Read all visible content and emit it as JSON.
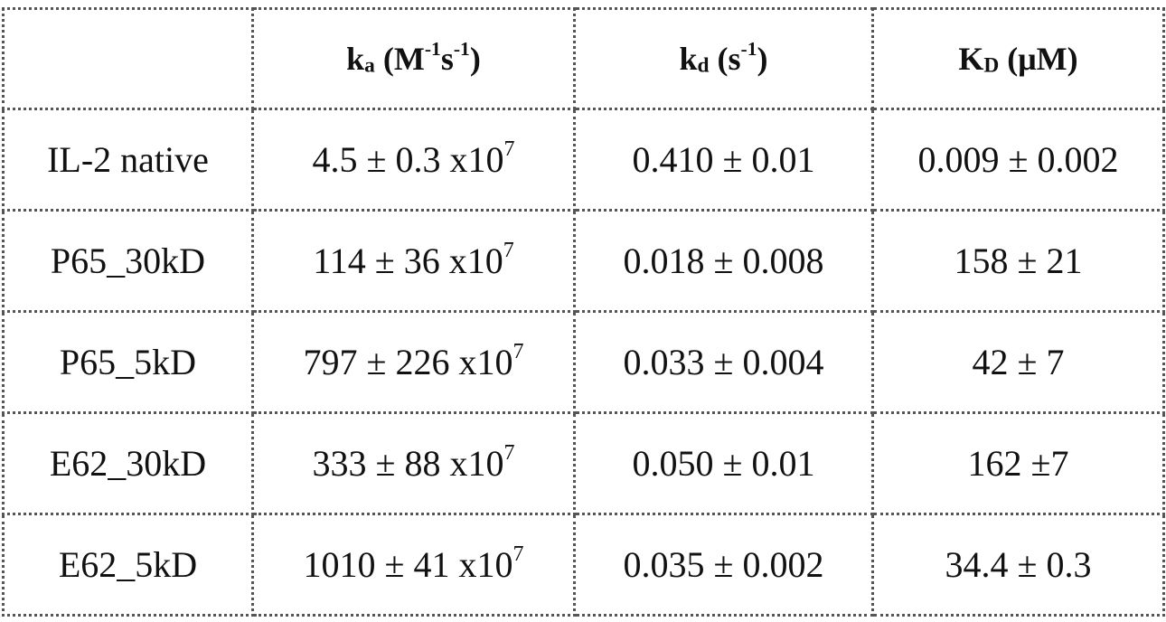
{
  "table": {
    "headers": [
      {
        "main": "",
        "sub": "",
        "rest": ""
      },
      {
        "main": "k",
        "sub": "a",
        "rest": " (M",
        "sup1": "-1",
        "mid": "s",
        "sup2": "-1",
        "end": ")"
      },
      {
        "main": "k",
        "sub": "d",
        "rest": " (s",
        "sup1": "-1",
        "end": ")"
      },
      {
        "main": "K",
        "sub": "D",
        "rest": " (μM)"
      }
    ],
    "rows": [
      {
        "name": "IL-2 native",
        "ka": "4.5 ± 0.3 x10",
        "ka_exp": "7",
        "kd": "0.410 ± 0.01",
        "KD": "0.009 ± 0.002"
      },
      {
        "name": "P65_30kD",
        "ka": "114 ± 36 x10",
        "ka_exp": "7",
        "kd": "0.018 ± 0.008",
        "KD": "158 ± 21"
      },
      {
        "name": "P65_5kD",
        "ka": "797 ± 226 x10",
        "ka_exp": "7",
        "kd": "0.033 ± 0.004",
        "KD": "42 ± 7"
      },
      {
        "name": "E62_30kD",
        "ka": "333 ± 88 x10",
        "ka_exp": "7",
        "kd": "0.050 ± 0.01",
        "KD": "162 ±7"
      },
      {
        "name": "E62_5kD",
        "ka": "1010 ± 41 x10",
        "ka_exp": "7",
        "kd": "0.035 ± 0.002",
        "KD": "34.4 ± 0.3"
      }
    ]
  }
}
